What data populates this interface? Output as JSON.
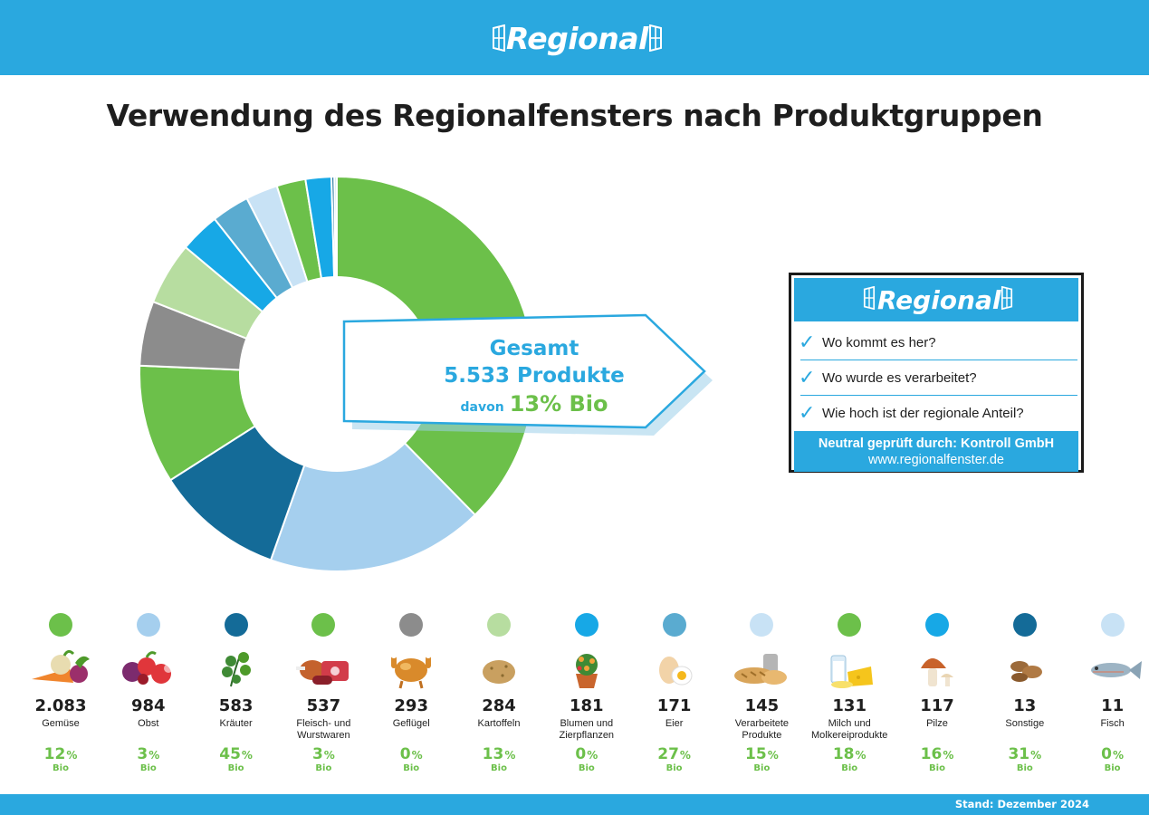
{
  "header": {
    "logo_text": "Regional"
  },
  "title": "Verwendung des Regionalfensters nach Produktgruppen",
  "callout": {
    "line1": "Gesamt",
    "line2": "5.533 Produkte",
    "davon": "davon",
    "bio_pct": "13% Bio"
  },
  "infobox": {
    "logo_text": "Regional",
    "items": [
      "Wo kommt es her?",
      "Wo wurde es verarbeitet?",
      "Wie hoch ist der regionale Anteil?"
    ],
    "footer_line1": "Neutral geprüft durch: Kontroll GmbH",
    "footer_line2": "www.regionalfenster.de"
  },
  "footer": {
    "stand": "Stand: Dezember 2024"
  },
  "colors": {
    "green": "#6cc04a",
    "light_blue": "#a5cfee",
    "dark_blue": "#146b98",
    "grey": "#8c8c8c",
    "light_green": "#b7dda0",
    "bright_blue": "#17a8e6",
    "mid_blue": "#5aabd0",
    "pale_blue": "#c8e2f5",
    "brand_blue": "#2aa8df"
  },
  "chart_data": {
    "type": "pie",
    "title": "Verwendung des Regionalfensters nach Produktgruppen",
    "total": 5533,
    "categories": [
      {
        "label": "Gemüse",
        "value": 2083,
        "display": "2.083",
        "bio": "12",
        "color": "#6cc04a",
        "icon": "vegetables-icon"
      },
      {
        "label": "Obst",
        "value": 984,
        "display": "984",
        "bio": "3",
        "color": "#a5cfee",
        "icon": "fruit-icon"
      },
      {
        "label": "Kräuter",
        "value": 583,
        "display": "583",
        "bio": "45",
        "color": "#146b98",
        "icon": "herbs-icon"
      },
      {
        "label": "Fleisch- und Wurstwaren",
        "value": 537,
        "display": "537",
        "bio": "3",
        "color": "#6cc04a",
        "icon": "meat-icon"
      },
      {
        "label": "Geflügel",
        "value": 293,
        "display": "293",
        "bio": "0",
        "color": "#8c8c8c",
        "icon": "poultry-icon"
      },
      {
        "label": "Kartoffeln",
        "value": 284,
        "display": "284",
        "bio": "13",
        "color": "#b7dda0",
        "icon": "potato-icon"
      },
      {
        "label": "Blumen und Zierpflanzen",
        "value": 181,
        "display": "181",
        "bio": "0",
        "color": "#17a8e6",
        "icon": "flower-pot-icon"
      },
      {
        "label": "Eier",
        "value": 171,
        "display": "171",
        "bio": "27",
        "color": "#5aabd0",
        "icon": "egg-icon"
      },
      {
        "label": "Verarbeitete Produkte",
        "value": 145,
        "display": "145",
        "bio": "15",
        "color": "#c8e2f5",
        "icon": "bread-icon"
      },
      {
        "label": "Milch und Molkereiprodukte",
        "value": 131,
        "display": "131",
        "bio": "18",
        "color": "#6cc04a",
        "icon": "dairy-icon"
      },
      {
        "label": "Pilze",
        "value": 117,
        "display": "117",
        "bio": "16",
        "color": "#17a8e6",
        "icon": "mushroom-icon"
      },
      {
        "label": "Sonstige",
        "value": 13,
        "display": "13",
        "bio": "31",
        "color": "#146b98",
        "icon": "nuts-icon"
      },
      {
        "label": "Fisch",
        "value": 11,
        "display": "11",
        "bio": "0",
        "color": "#c8e2f5",
        "icon": "fish-icon"
      }
    ],
    "pct_symbol": "%",
    "bio_label": "Bio"
  }
}
